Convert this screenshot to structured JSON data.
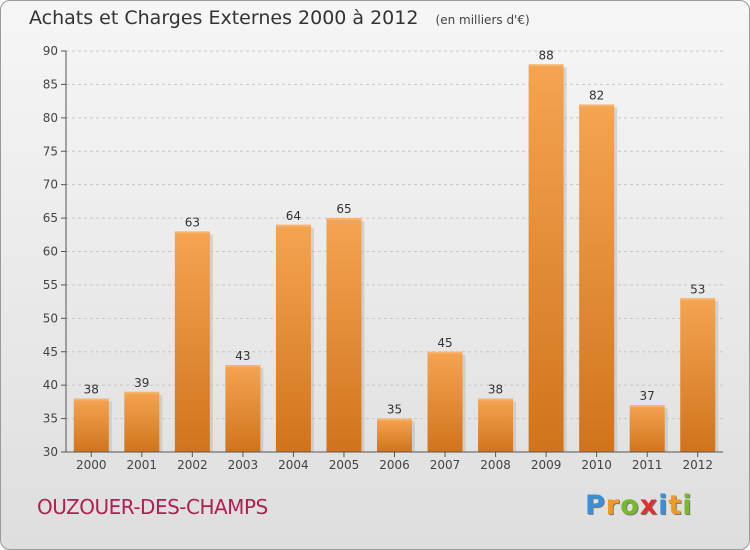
{
  "chart_data": {
    "type": "bar",
    "title": "Achats et Charges Externes 2000 à 2012",
    "unit": "(en milliers d'€)",
    "categories": [
      "2000",
      "2001",
      "2002",
      "2003",
      "2004",
      "2005",
      "2006",
      "2007",
      "2008",
      "2009",
      "2010",
      "2011",
      "2012"
    ],
    "values": [
      38,
      39,
      63,
      43,
      64,
      65,
      35,
      45,
      38,
      88,
      82,
      37,
      53
    ],
    "ylim": [
      30,
      90
    ],
    "yticks": [
      30,
      35,
      40,
      45,
      50,
      55,
      60,
      65,
      70,
      75,
      80,
      85,
      90
    ],
    "grid": true,
    "bar_color": "#f0a04b",
    "bar_color_dark": "#d0741c"
  },
  "commune": "OUZOUER-DES-CHAMPS",
  "logo": {
    "letters": [
      "P",
      "r",
      "o",
      "x",
      "i",
      "t",
      "i"
    ],
    "colors": [
      "#3a8fd8",
      "#f09a20",
      "#7ab830",
      "#e03030",
      "#3a8fd8",
      "#f09a20",
      "#7ab830"
    ]
  }
}
